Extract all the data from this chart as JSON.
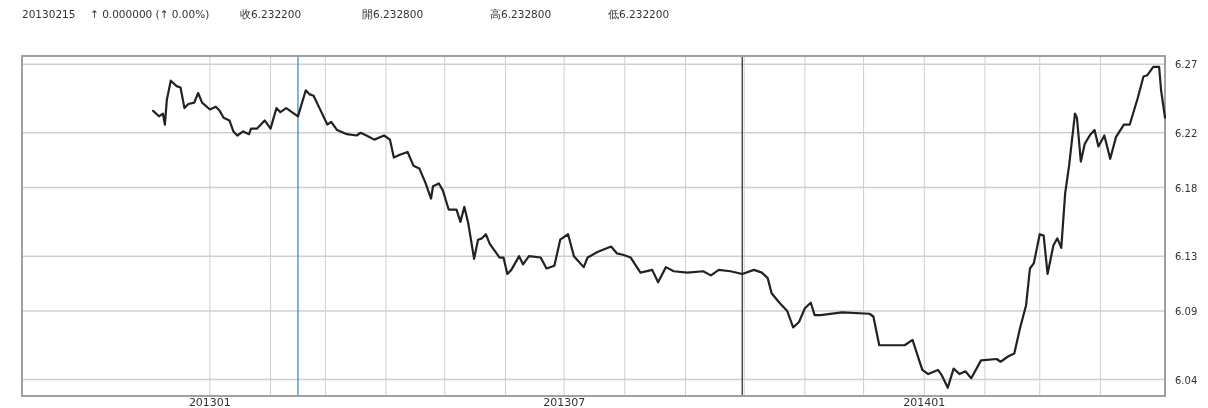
{
  "chart_data": {
    "type": "line",
    "color": "#222222",
    "grid": true,
    "annotations": [
      "20130215",
      "↑ 0.000000 (↑ 0.00%)",
      "收6.232200",
      "開6.232800",
      "高6.232800",
      "低6.232200"
    ],
    "xlim": [
      "2012-09-27",
      "2014-05-04"
    ],
    "ylim": [
      6.028,
      6.276
    ],
    "xticks": [
      {
        "value": "2013-01-01",
        "label": "201301"
      },
      {
        "value": "2013-02-01",
        "label": null
      },
      {
        "value": "2013-03-01",
        "label": null
      },
      {
        "value": "2013-04-01",
        "label": null
      },
      {
        "value": "2013-05-01",
        "label": null
      },
      {
        "value": "2013-06-01",
        "label": null
      },
      {
        "value": "2013-07-01",
        "label": "201307"
      },
      {
        "value": "2013-08-01",
        "label": null
      },
      {
        "value": "2013-09-01",
        "label": null
      },
      {
        "value": "2013-10-01",
        "label": null
      },
      {
        "value": "2013-11-01",
        "label": null
      },
      {
        "value": "2013-12-01",
        "label": null
      },
      {
        "value": "2014-01-01",
        "label": "201401"
      },
      {
        "value": "2014-02-01",
        "label": null
      },
      {
        "value": "2014-03-01",
        "label": null
      },
      {
        "value": "2014-04-01",
        "label": null
      }
    ],
    "yticks": [
      6.04,
      6.09,
      6.13,
      6.18,
      6.22,
      6.27
    ],
    "ref_lines": [
      {
        "axis": "x",
        "value": "2013-02-15",
        "color": "#3a8fc8"
      },
      {
        "axis": "x",
        "value": "2013-09-30",
        "color": "#333333"
      }
    ],
    "x": [
      "2012-12-03",
      "2012-12-06",
      "2012-12-08",
      "2012-12-09",
      "2012-12-10",
      "2012-12-12",
      "2012-12-15",
      "2012-12-17",
      "2012-12-19",
      "2012-12-21",
      "2012-12-24",
      "2012-12-26",
      "2012-12-28",
      "2013-01-01",
      "2013-01-04",
      "2013-01-06",
      "2013-01-08",
      "2013-01-11",
      "2013-01-13",
      "2013-01-15",
      "2013-01-18",
      "2013-01-21",
      "2013-01-22",
      "2013-01-25",
      "2013-01-29",
      "2013-02-01",
      "2013-02-04",
      "2013-02-06",
      "2013-02-09",
      "2013-02-15",
      "2013-02-19",
      "2013-02-21",
      "2013-02-23",
      "2013-02-26",
      "2013-03-02",
      "2013-03-04",
      "2013-03-07",
      "2013-03-12",
      "2013-03-17",
      "2013-03-19",
      "2013-03-22",
      "2013-03-26",
      "2013-03-31",
      "2013-04-03",
      "2013-04-05",
      "2013-04-08",
      "2013-04-12",
      "2013-04-15",
      "2013-04-18",
      "2013-04-21",
      "2013-04-24",
      "2013-04-25",
      "2013-04-28",
      "2013-04-30",
      "2013-05-03",
      "2013-05-07",
      "2013-05-09",
      "2013-05-11",
      "2013-05-13",
      "2013-05-16",
      "2013-05-18",
      "2013-05-20",
      "2013-05-22",
      "2013-05-24",
      "2013-05-29",
      "2013-05-31",
      "2013-06-02",
      "2013-06-04",
      "2013-06-08",
      "2013-06-10",
      "2013-06-13",
      "2013-06-19",
      "2013-06-22",
      "2013-06-26",
      "2013-06-29",
      "2013-07-03",
      "2013-07-06",
      "2013-07-11",
      "2013-07-13",
      "2013-07-18",
      "2013-07-25",
      "2013-07-28",
      "2013-07-31",
      "2013-08-04",
      "2013-08-09",
      "2013-08-15",
      "2013-08-18",
      "2013-08-22",
      "2013-08-26",
      "2013-09-02",
      "2013-09-10",
      "2013-09-14",
      "2013-09-18",
      "2013-09-24",
      "2013-09-30",
      "2013-10-06",
      "2013-10-10",
      "2013-10-13",
      "2013-10-15",
      "2013-10-19",
      "2013-10-23",
      "2013-10-26",
      "2013-10-29",
      "2013-11-01",
      "2013-11-04",
      "2013-11-06",
      "2013-11-09",
      "2013-11-20",
      "2013-12-04",
      "2013-12-06",
      "2013-12-09",
      "2013-12-22",
      "2013-12-26",
      "2013-12-31",
      "2014-01-03",
      "2014-01-08",
      "2014-01-10",
      "2014-01-13",
      "2014-01-16",
      "2014-01-19",
      "2014-01-22",
      "2014-01-25",
      "2014-01-30",
      "2014-02-07",
      "2014-02-09",
      "2014-02-13",
      "2014-02-16",
      "2014-02-19",
      "2014-02-22",
      "2014-02-24",
      "2014-02-26",
      "2014-03-01",
      "2014-03-03",
      "2014-03-05",
      "2014-03-08",
      "2014-03-10",
      "2014-03-12",
      "2014-03-14",
      "2014-03-16",
      "2014-03-19",
      "2014-03-20",
      "2014-03-22",
      "2014-03-24",
      "2014-03-27",
      "2014-03-29",
      "2014-03-31",
      "2014-04-03",
      "2014-04-06",
      "2014-04-09",
      "2014-04-13",
      "2014-04-16",
      "2014-04-20",
      "2014-04-23",
      "2014-04-25",
      "2014-04-28",
      "2014-05-01",
      "2014-05-02",
      "2014-05-04"
    ],
    "values": [
      6.236,
      6.232,
      6.234,
      6.226,
      6.244,
      6.258,
      6.254,
      6.253,
      6.238,
      6.241,
      6.242,
      6.249,
      6.242,
      6.237,
      6.239,
      6.236,
      6.231,
      6.229,
      6.221,
      6.218,
      6.221,
      6.219,
      6.223,
      6.223,
      6.229,
      6.223,
      6.238,
      6.235,
      6.238,
      6.232,
      6.251,
      6.248,
      6.247,
      6.238,
      6.226,
      6.228,
      6.222,
      6.219,
      6.218,
      6.22,
      6.218,
      6.215,
      6.218,
      6.215,
      6.202,
      6.204,
      6.206,
      6.196,
      6.194,
      6.184,
      6.172,
      6.181,
      6.183,
      6.178,
      6.164,
      6.164,
      6.155,
      6.166,
      6.154,
      6.128,
      6.142,
      6.143,
      6.146,
      6.139,
      6.129,
      6.129,
      6.117,
      6.12,
      6.13,
      6.124,
      6.13,
      6.129,
      6.121,
      6.123,
      6.142,
      6.146,
      6.13,
      6.122,
      6.129,
      6.133,
      6.137,
      6.132,
      6.131,
      6.129,
      6.118,
      6.12,
      6.111,
      6.122,
      6.119,
      6.118,
      6.119,
      6.116,
      6.12,
      6.119,
      6.117,
      6.12,
      6.118,
      6.114,
      6.103,
      6.096,
      6.09,
      6.078,
      6.082,
      6.092,
      6.096,
      6.087,
      6.087,
      6.089,
      6.088,
      6.086,
      6.065,
      6.065,
      6.069,
      6.047,
      6.044,
      6.047,
      6.043,
      6.034,
      6.048,
      6.044,
      6.046,
      6.041,
      6.054,
      6.055,
      6.053,
      6.057,
      6.059,
      6.078,
      6.094,
      6.121,
      6.125,
      6.146,
      6.145,
      6.117,
      6.138,
      6.143,
      6.136,
      6.176,
      6.196,
      6.234,
      6.231,
      6.199,
      6.212,
      6.219,
      6.222,
      6.21,
      6.218,
      6.201,
      6.217,
      6.226,
      6.226,
      6.245,
      6.261,
      6.262,
      6.268,
      6.268,
      6.251,
      6.231
    ]
  }
}
